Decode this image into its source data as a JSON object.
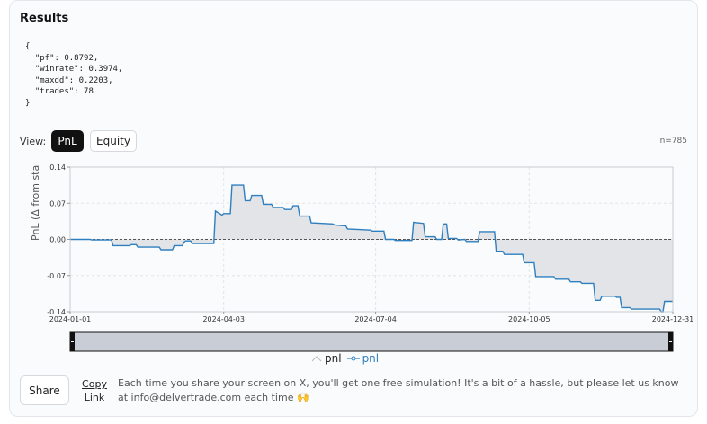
{
  "results": {
    "title": "Results",
    "json_text": "{\n  \"pf\": 0.8792,\n  \"winrate\": 0.3974,\n  \"maxdd\": 0.2203,\n  \"trades\": 78\n}"
  },
  "view": {
    "label": "View:",
    "options": [
      "PnL",
      "Equity"
    ],
    "selected": "PnL",
    "count_label": "n=785"
  },
  "chart_data": {
    "type": "area",
    "ylabel": "PnL (Δ from sta",
    "y_ticks": [
      "0.14",
      "0.07",
      "0.00",
      "-0.07",
      "-0.14"
    ],
    "y_tick_values": [
      0.14,
      0.07,
      0,
      -0.07,
      -0.14
    ],
    "x_ticks": [
      "2024-01-01",
      "2024-04-03",
      "2024-07-04",
      "2024-10-05",
      "2024-12-31"
    ],
    "x_range": [
      "2024-01-01",
      "2024-12-31"
    ],
    "ylim": [
      -0.14,
      0.14
    ],
    "grid": true,
    "legend": [
      "pnl",
      "pnl"
    ],
    "legend_placement": "bottom",
    "colors": {
      "line": "#2f7fbf",
      "fill": "#e2e4e8",
      "zero": "#555555"
    },
    "series": [
      {
        "name": "pnl",
        "x": [
          "2024-01-01",
          "2024-01-13",
          "2024-01-14",
          "2024-01-26",
          "2024-01-27",
          "2024-02-06",
          "2024-02-07",
          "2024-02-10",
          "2024-02-11",
          "2024-02-24",
          "2024-02-25",
          "2024-03-03",
          "2024-03-04",
          "2024-03-09",
          "2024-03-10",
          "2024-03-11",
          "2024-03-14",
          "2024-03-15",
          "2024-03-28",
          "2024-03-29",
          "2024-04-02",
          "2024-04-03",
          "2024-04-07",
          "2024-04-08",
          "2024-04-15",
          "2024-04-16",
          "2024-04-19",
          "2024-04-20",
          "2024-04-26",
          "2024-04-27",
          "2024-05-02",
          "2024-05-03",
          "2024-05-09",
          "2024-05-10",
          "2024-05-14",
          "2024-05-15",
          "2024-05-18",
          "2024-05-19",
          "2024-05-25",
          "2024-05-26",
          "2024-06-08",
          "2024-06-09",
          "2024-06-16",
          "2024-06-17",
          "2024-07-01",
          "2024-07-02",
          "2024-07-09",
          "2024-07-10",
          "2024-07-15",
          "2024-07-16",
          "2024-07-26",
          "2024-07-27",
          "2024-08-02",
          "2024-08-03",
          "2024-08-09",
          "2024-08-10",
          "2024-08-13",
          "2024-08-14",
          "2024-08-16",
          "2024-08-17",
          "2024-08-22",
          "2024-08-23",
          "2024-08-27",
          "2024-08-28",
          "2024-09-04",
          "2024-09-05",
          "2024-09-14",
          "2024-09-15",
          "2024-09-19",
          "2024-09-20",
          "2024-10-01",
          "2024-10-02",
          "2024-10-08",
          "2024-10-09",
          "2024-10-20",
          "2024-10-21",
          "2024-10-29",
          "2024-10-30",
          "2024-11-05",
          "2024-11-06",
          "2024-11-13",
          "2024-11-14",
          "2024-11-17",
          "2024-11-18",
          "2024-11-26",
          "2024-11-27",
          "2024-11-29",
          "2024-11-30",
          "2024-12-05",
          "2024-12-06",
          "2024-12-23",
          "2024-12-24",
          "2024-12-25",
          "2024-12-26",
          "2024-12-31"
        ],
        "values": [
          0.0,
          0.0,
          -0.001,
          -0.001,
          -0.012,
          -0.012,
          -0.01,
          -0.01,
          -0.015,
          -0.015,
          -0.02,
          -0.02,
          -0.012,
          -0.012,
          -0.005,
          -0.003,
          -0.003,
          -0.008,
          -0.008,
          0.055,
          0.047,
          0.05,
          0.05,
          0.105,
          0.105,
          0.075,
          0.075,
          0.085,
          0.085,
          0.068,
          0.068,
          0.062,
          0.062,
          0.058,
          0.058,
          0.065,
          0.065,
          0.045,
          0.045,
          0.032,
          0.03,
          0.028,
          0.026,
          0.02,
          0.018,
          0.016,
          0.016,
          0.0,
          0.0,
          -0.002,
          -0.002,
          0.033,
          0.031,
          0.005,
          0.005,
          0.0,
          0.0,
          0.03,
          0.03,
          0.002,
          0.002,
          -0.001,
          0.0,
          -0.004,
          -0.004,
          0.015,
          0.015,
          -0.023,
          -0.023,
          -0.029,
          -0.029,
          -0.045,
          -0.045,
          -0.072,
          -0.072,
          -0.077,
          -0.077,
          -0.082,
          -0.082,
          -0.085,
          -0.085,
          -0.118,
          -0.118,
          -0.11,
          -0.11,
          -0.112,
          -0.112,
          -0.132,
          -0.132,
          -0.135,
          -0.135,
          -0.14,
          -0.14,
          -0.12,
          -0.12
        ]
      }
    ]
  },
  "footer": {
    "share_label": "Share",
    "copy_label_1": "Copy",
    "copy_label_2": "Link",
    "note": "Each time you share your screen on X, you'll get one free simulation! It's a bit of a hassle, but please let us know at info@delvertrade.com each time 🙌"
  }
}
